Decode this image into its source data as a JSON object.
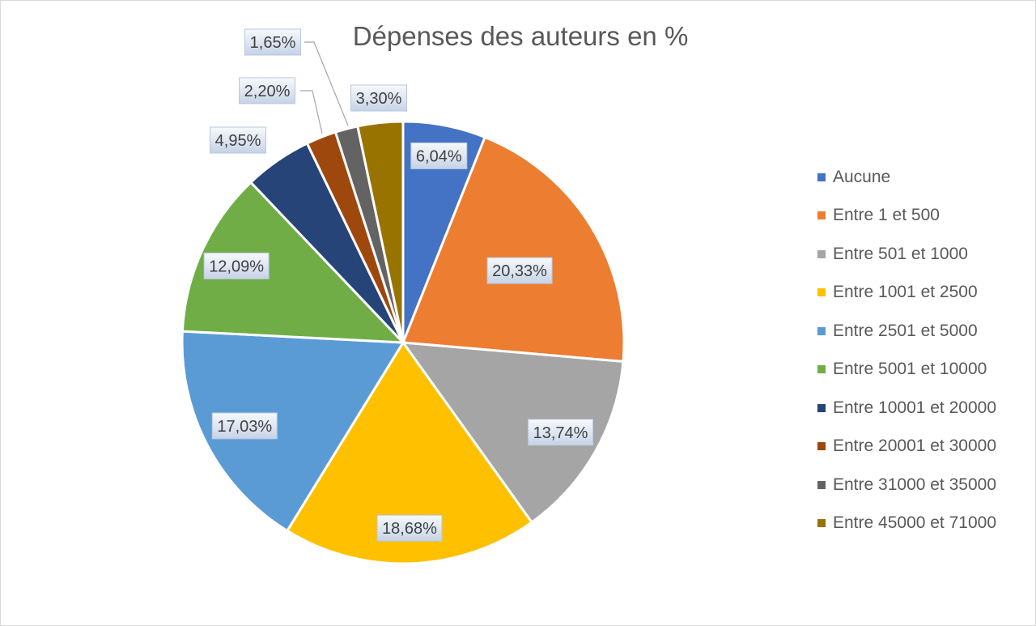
{
  "colors": {
    "aucune": "#4472c4",
    "entre_1_500": "#ed7d31",
    "entre_501_1000": "#a5a5a5",
    "entre_1001_2500": "#ffc000",
    "entre_2501_5000": "#5b9bd5",
    "entre_5001_10000": "#70ad47",
    "entre_10001_20000": "#264478",
    "entre_20001_30000": "#9e480e",
    "entre_31000_35000": "#636363",
    "entre_45000_71000": "#997300"
  },
  "chart_data": {
    "type": "pie",
    "title": "Dépenses des auteurs en %",
    "legend_position": "right",
    "categories": [
      "Aucune",
      "Entre 1 et 500",
      "Entre 501 et 1000",
      "Entre 1001 et 2500",
      "Entre 2501 et 5000",
      "Entre 5001 et 10000",
      "Entre 10001 et 20000",
      "Entre 20001 et 30000",
      "Entre 31000 et 35000",
      "Entre 45000 et 71000"
    ],
    "values": [
      6.04,
      20.33,
      13.74,
      18.68,
      17.03,
      12.09,
      4.95,
      2.2,
      1.65,
      3.3
    ],
    "labels": [
      "6,04%",
      "20,33%",
      "13,74%",
      "18,68%",
      "17,03%",
      "12,09%",
      "4,95%",
      "2,20%",
      "1,65%",
      "3,30%"
    ],
    "slice_colors": [
      "#4472c4",
      "#ed7d31",
      "#a5a5a5",
      "#ffc000",
      "#5b9bd5",
      "#70ad47",
      "#264478",
      "#9e480e",
      "#636363",
      "#997300"
    ]
  }
}
